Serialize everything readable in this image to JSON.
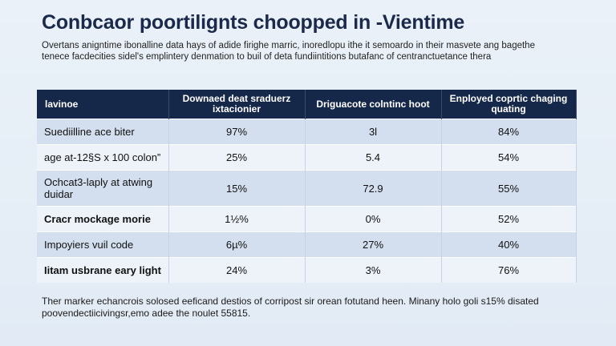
{
  "title": "Conbcaor poortilignts choopped in ‑Vientime",
  "intro": "Overtans anigntime ibonalline data hays of adide firighe marric, inoredlopu ithe it semoardo in their masvete ang bagethe tenece facdecities sidel's emplintery denmation to buil of deta fundiintitions butafanc of centranctuetance thera",
  "table": {
    "headers": [
      "lavinoe",
      "Downaed deat sraduerz ixtacionier",
      "Driguacote colntinc hoot",
      "Enployed coprtic chaging quating"
    ],
    "rows": [
      {
        "label": "Suediilline ace biter",
        "values": [
          "97%",
          "3l",
          "84%"
        ]
      },
      {
        "label": "age at-12§S x 100 colon”",
        "values": [
          "25%",
          "5.4",
          "54%"
        ]
      },
      {
        "label": "Ochcat3-laply at atwing duidar",
        "values": [
          "15%",
          "72.9",
          "55%"
        ]
      },
      {
        "label": "Cracr mockage morie",
        "values": [
          "1½%",
          "0%",
          "52%"
        ]
      },
      {
        "label": "Impoyiers vuil code",
        "values": [
          "6µ%",
          "27%",
          "40%"
        ]
      },
      {
        "label": "Iitam usbrane eary light",
        "values": [
          "24%",
          "3%",
          "76%"
        ]
      }
    ]
  },
  "footnote": "Ther marker echancrois solosed eeficand destios of corripost sir orean fotutand heen. Minany holo goli s15% disated poovendectiicivingsr,emo adee the noulet 55815."
}
